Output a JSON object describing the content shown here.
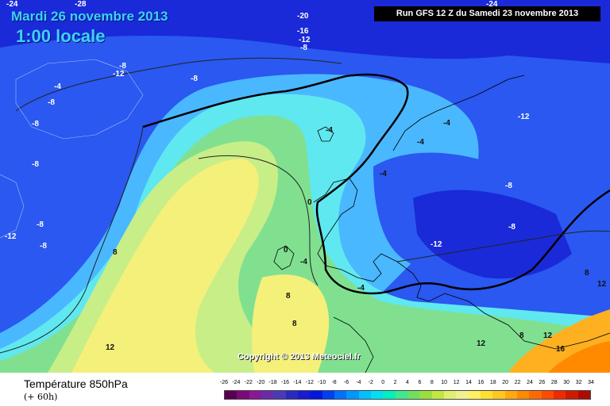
{
  "header": {
    "date": "Mardi 26 novembre 2013",
    "time": "1:00 locale",
    "run": "Run GFS 12 Z du Samedi 23 novembre 2013"
  },
  "copyright": "Copyright © 2013 Meteociel.fr",
  "footer": {
    "parameter": "Température 850hPa",
    "lead": "(+ 60h)"
  },
  "scale": {
    "ticks": [
      "-26",
      "-24",
      "-22",
      "-20",
      "-18",
      "-16",
      "-14",
      "-12",
      "-10",
      "-8",
      "-6",
      "-4",
      "-2",
      "0",
      "2",
      "4",
      "6",
      "8",
      "10",
      "12",
      "14",
      "16",
      "18",
      "20",
      "22",
      "24",
      "26",
      "28",
      "30",
      "32",
      "34"
    ],
    "colors": [
      "#5a0050",
      "#7a0a78",
      "#8a1896",
      "#6a2aa8",
      "#4a3ab8",
      "#2a2ac0",
      "#1a1ad0",
      "#0018e0",
      "#0040f0",
      "#0070ff",
      "#0098ff",
      "#00c0ff",
      "#00e0f0",
      "#00f0c0",
      "#40e890",
      "#70e060",
      "#98e040",
      "#c0e840",
      "#e0f070",
      "#f0f090",
      "#fff060",
      "#ffe030",
      "#ffc820",
      "#ffa810",
      "#ff8a00",
      "#ff6a00",
      "#ff4a00",
      "#f02a00",
      "#d01a00",
      "#b00a00"
    ]
  },
  "colors": {
    "deep_blue": "#1a2ad8",
    "blue": "#2a58f0",
    "light_blue": "#4ab8ff",
    "cyan": "#60e8f0",
    "green": "#80e090",
    "yellow_green": "#c8ee88",
    "yellow": "#f4f07a",
    "orange": "#ffb020"
  },
  "contour_labels": [
    {
      "text": "-28"
    },
    {
      "text": "-24"
    },
    {
      "text": "-24"
    },
    {
      "text": "-20"
    },
    {
      "text": "-16"
    },
    {
      "text": "-12"
    },
    {
      "text": "-8"
    },
    {
      "text": "-8"
    },
    {
      "text": "-12"
    },
    {
      "text": "-8"
    },
    {
      "text": "-4"
    },
    {
      "text": "-8"
    },
    {
      "text": "-8"
    },
    {
      "text": "-8"
    },
    {
      "text": "-8"
    },
    {
      "text": "-12"
    },
    {
      "text": "-8"
    },
    {
      "text": "-4"
    },
    {
      "text": "-4"
    },
    {
      "text": "-4"
    },
    {
      "text": "-4"
    },
    {
      "text": "-12"
    },
    {
      "text": "-8"
    },
    {
      "text": "-8"
    },
    {
      "text": "0"
    },
    {
      "text": "0"
    },
    {
      "text": "-4"
    },
    {
      "text": "-12"
    },
    {
      "text": "8"
    },
    {
      "text": "-4"
    },
    {
      "text": "8"
    },
    {
      "text": "8"
    },
    {
      "text": "8"
    },
    {
      "text": "12"
    },
    {
      "text": "12"
    },
    {
      "text": "12"
    },
    {
      "text": "16"
    },
    {
      "text": "8"
    },
    {
      "text": "12"
    }
  ]
}
